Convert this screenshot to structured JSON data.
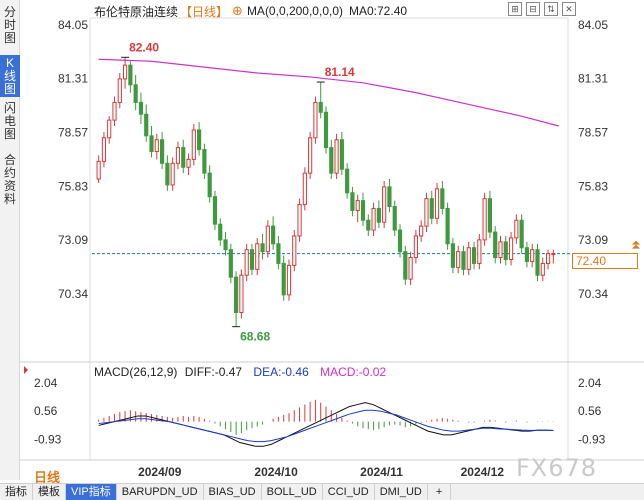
{
  "sidebar": {
    "tabs": [
      {
        "label": "分时图",
        "active": false
      },
      {
        "label": "K线图",
        "active": true
      },
      {
        "label": "闪电图",
        "active": false
      },
      {
        "label": "合约资料",
        "active": false
      }
    ]
  },
  "header": {
    "title": "布伦特原油连续",
    "period": "【日线】",
    "add_symbol": "⊕",
    "ma_text": "MA(0,0,200,0,0,0)",
    "ma_value": "MA0:72.40"
  },
  "toolbar_icons": [
    "⊞",
    "⊟",
    "⇅",
    "✕"
  ],
  "macd_header": {
    "label": "MACD(26,12,9)",
    "diff": "DIFF:-0.47",
    "dea": "DEA:-0.46",
    "macd": "MACD:-0.02"
  },
  "period_label": "日线",
  "current_price_tag": "72.40",
  "watermark": "FX678",
  "bottom_tabs": [
    {
      "label": "指标",
      "active": false
    },
    {
      "label": "模板",
      "active": false
    },
    {
      "label": "VIP指标",
      "active": true
    },
    {
      "label": "BARUPDN_UD",
      "active": false
    },
    {
      "label": "BIAS_UD",
      "active": false
    },
    {
      "label": "BOLL_UD",
      "active": false
    },
    {
      "label": "CCI_UD",
      "active": false
    },
    {
      "label": "DMI_UD",
      "active": false
    },
    {
      "label": "+",
      "active": false
    }
  ],
  "colors": {
    "up": "#d83a3a",
    "down": "#3f9a3f",
    "ma": "#cc33cc",
    "diff": "#111111",
    "dea": "#1a3cc8",
    "accent": "#e07a1a",
    "price_line": "#1a7aa8"
  },
  "chart_data": {
    "type": "candlestick",
    "price_axis": {
      "ticks": [
        "84.05",
        "81.31",
        "78.57",
        "75.83",
        "73.09",
        "70.34"
      ],
      "range": [
        68.0,
        84.3
      ]
    },
    "time_axis": {
      "labels": [
        "2024/09",
        "2024/10",
        "2024/11",
        "2024/12"
      ]
    },
    "annotations": [
      {
        "label": "82.40",
        "value": 82.4,
        "type": "high"
      },
      {
        "label": "81.14",
        "value": 81.14,
        "type": "high"
      },
      {
        "label": "68.68",
        "value": 68.68,
        "type": "low"
      }
    ],
    "current_price": 72.4,
    "candles": [
      [
        76.2,
        77.4,
        76.0,
        77.1
      ],
      [
        77.1,
        78.6,
        76.8,
        78.3
      ],
      [
        78.3,
        79.4,
        78.0,
        79.2
      ],
      [
        79.2,
        80.4,
        78.9,
        80.1
      ],
      [
        80.1,
        81.6,
        79.8,
        81.3
      ],
      [
        81.3,
        82.4,
        80.8,
        82.0
      ],
      [
        82.0,
        82.2,
        80.6,
        81.0
      ],
      [
        81.0,
        81.5,
        79.7,
        80.1
      ],
      [
        80.1,
        80.6,
        79.0,
        79.5
      ],
      [
        79.5,
        80.0,
        78.1,
        78.4
      ],
      [
        78.4,
        78.9,
        77.3,
        77.6
      ],
      [
        77.6,
        78.5,
        77.2,
        78.2
      ],
      [
        78.2,
        78.6,
        76.7,
        77.0
      ],
      [
        77.0,
        77.4,
        75.6,
        75.9
      ],
      [
        75.9,
        77.3,
        75.6,
        77.0
      ],
      [
        77.0,
        78.1,
        76.7,
        77.8
      ],
      [
        77.8,
        78.2,
        76.5,
        76.8
      ],
      [
        76.8,
        77.5,
        76.4,
        77.2
      ],
      [
        77.2,
        79.0,
        76.9,
        78.7
      ],
      [
        78.7,
        79.1,
        77.4,
        77.7
      ],
      [
        77.7,
        78.0,
        76.2,
        76.5
      ],
      [
        76.5,
        76.9,
        75.0,
        75.3
      ],
      [
        75.3,
        75.6,
        73.6,
        73.9
      ],
      [
        73.9,
        74.2,
        72.8,
        73.1
      ],
      [
        73.1,
        73.5,
        72.3,
        72.6
      ],
      [
        72.6,
        72.9,
        70.9,
        71.2
      ],
      [
        71.2,
        71.5,
        68.68,
        69.4
      ],
      [
        69.4,
        71.6,
        69.1,
        71.3
      ],
      [
        71.3,
        72.9,
        71.0,
        72.6
      ],
      [
        72.6,
        72.9,
        71.3,
        71.6
      ],
      [
        71.6,
        73.2,
        71.3,
        72.9
      ],
      [
        72.9,
        73.4,
        72.1,
        72.5
      ],
      [
        72.5,
        74.1,
        72.2,
        73.8
      ],
      [
        73.8,
        74.3,
        72.6,
        72.9
      ],
      [
        72.9,
        73.3,
        71.6,
        71.9
      ],
      [
        71.9,
        72.3,
        70.0,
        70.3
      ],
      [
        70.3,
        72.1,
        70.0,
        71.8
      ],
      [
        71.8,
        73.6,
        71.5,
        73.3
      ],
      [
        73.3,
        75.2,
        73.0,
        74.9
      ],
      [
        74.9,
        76.8,
        74.6,
        76.5
      ],
      [
        76.5,
        78.6,
        76.2,
        78.3
      ],
      [
        78.3,
        80.4,
        78.0,
        80.1
      ],
      [
        80.1,
        81.14,
        79.3,
        79.6
      ],
      [
        79.6,
        79.9,
        77.5,
        77.8
      ],
      [
        77.8,
        78.2,
        76.2,
        76.5
      ],
      [
        76.5,
        78.5,
        76.2,
        78.2
      ],
      [
        78.2,
        78.6,
        76.4,
        76.7
      ],
      [
        76.7,
        77.0,
        75.2,
        75.5
      ],
      [
        75.5,
        75.8,
        74.3,
        74.6
      ],
      [
        74.6,
        75.4,
        74.0,
        75.1
      ],
      [
        75.1,
        75.5,
        73.8,
        74.1
      ],
      [
        74.1,
        74.4,
        73.3,
        73.6
      ],
      [
        73.6,
        75.0,
        73.3,
        74.7
      ],
      [
        74.7,
        75.1,
        73.7,
        74.0
      ],
      [
        74.0,
        76.1,
        73.7,
        75.8
      ],
      [
        75.8,
        76.2,
        74.5,
        74.8
      ],
      [
        74.8,
        75.1,
        73.3,
        73.6
      ],
      [
        73.6,
        73.9,
        72.2,
        72.5
      ],
      [
        72.5,
        72.8,
        70.8,
        71.1
      ],
      [
        71.1,
        72.5,
        70.8,
        72.2
      ],
      [
        72.2,
        73.6,
        71.9,
        73.3
      ],
      [
        73.3,
        74.1,
        73.0,
        73.8
      ],
      [
        73.8,
        75.5,
        73.5,
        75.2
      ],
      [
        75.2,
        75.6,
        73.9,
        74.2
      ],
      [
        74.2,
        76.0,
        73.9,
        75.7
      ],
      [
        75.7,
        76.1,
        74.4,
        74.7
      ],
      [
        74.7,
        75.0,
        72.6,
        72.9
      ],
      [
        72.9,
        73.2,
        71.4,
        71.7
      ],
      [
        71.7,
        72.8,
        71.4,
        72.5
      ],
      [
        72.5,
        72.8,
        71.3,
        71.6
      ],
      [
        71.6,
        73.0,
        71.3,
        72.7
      ],
      [
        72.7,
        73.0,
        71.6,
        71.9
      ],
      [
        71.9,
        73.4,
        71.6,
        73.1
      ],
      [
        73.1,
        75.5,
        72.8,
        75.2
      ],
      [
        75.2,
        75.6,
        73.2,
        73.5
      ],
      [
        73.5,
        73.8,
        71.9,
        72.2
      ],
      [
        72.2,
        73.3,
        71.9,
        73.0
      ],
      [
        73.0,
        73.3,
        71.8,
        72.1
      ],
      [
        72.1,
        73.5,
        71.8,
        73.2
      ],
      [
        73.2,
        74.4,
        72.9,
        74.1
      ],
      [
        74.1,
        74.4,
        72.4,
        72.7
      ],
      [
        72.7,
        73.0,
        71.7,
        72.0
      ],
      [
        72.0,
        72.9,
        71.7,
        72.6
      ],
      [
        72.6,
        72.9,
        71.0,
        71.3
      ],
      [
        71.3,
        72.2,
        71.0,
        71.9
      ],
      [
        71.9,
        72.6,
        71.6,
        72.4
      ],
      [
        72.4,
        72.6,
        71.9,
        72.4
      ]
    ],
    "ma_line": [
      [
        0,
        82.3
      ],
      [
        10,
        82.2
      ],
      [
        20,
        81.9
      ],
      [
        30,
        81.6
      ],
      [
        40,
        81.4
      ],
      [
        50,
        81.1
      ],
      [
        60,
        80.6
      ],
      [
        70,
        80.0
      ],
      [
        80,
        79.4
      ],
      [
        87,
        78.9
      ]
    ],
    "macd_axis": {
      "ticks": [
        "2.04",
        "0.56",
        "-0.93"
      ],
      "range": [
        -1.6,
        2.3
      ]
    },
    "macd_hist": [
      0.1,
      0.2,
      0.3,
      0.4,
      0.5,
      0.55,
      0.6,
      0.55,
      0.5,
      0.45,
      0.4,
      0.35,
      0.3,
      0.25,
      0.2,
      0.25,
      0.3,
      0.25,
      0.3,
      0.25,
      0.15,
      0.05,
      -0.1,
      -0.25,
      -0.4,
      -0.55,
      -0.7,
      -0.6,
      -0.45,
      -0.35,
      -0.25,
      -0.15,
      0.0,
      0.15,
      0.25,
      0.35,
      0.45,
      0.6,
      0.75,
      0.9,
      1.05,
      1.15,
      1.0,
      0.8,
      0.6,
      0.4,
      0.2,
      0.05,
      -0.1,
      -0.25,
      -0.35,
      -0.4,
      -0.45,
      -0.4,
      -0.3,
      -0.2,
      -0.15,
      -0.2,
      -0.3,
      -0.25,
      -0.15,
      -0.05,
      0.05,
      0.1,
      0.15,
      0.2,
      0.15,
      0.1,
      0.05,
      0.0,
      -0.05,
      -0.05,
      0.0,
      0.05,
      0.1,
      0.05,
      0.0,
      -0.05,
      0.0,
      0.05,
      0.0,
      -0.05,
      0.0,
      -0.02,
      -0.02,
      -0.02,
      -0.02
    ],
    "diff_line": [
      -0.2,
      -0.1,
      0.0,
      0.1,
      0.2,
      0.3,
      0.3,
      0.2,
      0.1,
      0.0,
      -0.1,
      -0.2,
      -0.3,
      -0.4,
      -0.5,
      -0.6,
      -0.7,
      -0.9,
      -1.1,
      -1.2,
      -1.3,
      -1.3,
      -1.2,
      -1.0,
      -0.8,
      -0.6,
      -0.4,
      -0.2,
      0.0,
      0.2,
      0.4,
      0.6,
      0.8,
      0.9,
      1.0,
      0.9,
      0.7,
      0.5,
      0.3,
      0.1,
      -0.1,
      -0.3,
      -0.5,
      -0.6,
      -0.7,
      -0.7,
      -0.6,
      -0.5,
      -0.4,
      -0.3,
      -0.3,
      -0.35,
      -0.4,
      -0.45,
      -0.5,
      -0.5,
      -0.45,
      -0.45,
      -0.47
    ],
    "dea_line": [
      -0.1,
      -0.05,
      0.0,
      0.05,
      0.1,
      0.15,
      0.15,
      0.1,
      0.05,
      0.0,
      -0.1,
      -0.2,
      -0.3,
      -0.4,
      -0.5,
      -0.6,
      -0.7,
      -0.8,
      -0.9,
      -1.0,
      -1.05,
      -1.05,
      -1.0,
      -0.9,
      -0.8,
      -0.65,
      -0.5,
      -0.35,
      -0.2,
      -0.05,
      0.1,
      0.25,
      0.4,
      0.5,
      0.6,
      0.6,
      0.55,
      0.45,
      0.35,
      0.2,
      0.05,
      -0.1,
      -0.25,
      -0.35,
      -0.45,
      -0.5,
      -0.5,
      -0.45,
      -0.4,
      -0.35,
      -0.35,
      -0.38,
      -0.4,
      -0.42,
      -0.45,
      -0.46,
      -0.46,
      -0.46,
      -0.46
    ]
  }
}
